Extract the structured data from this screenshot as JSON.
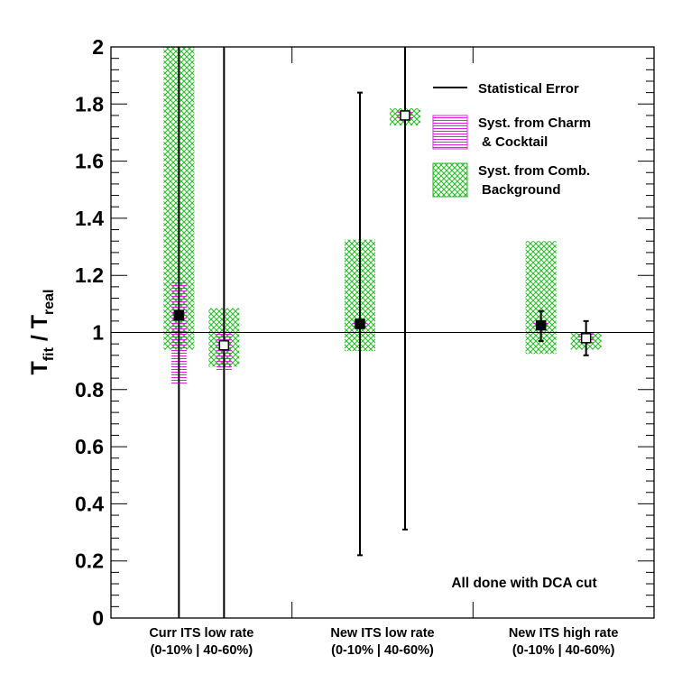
{
  "chart_data": {
    "type": "scatter",
    "ylabel": {
      "main1": "T",
      "sub1": "fit",
      "main2": " / T",
      "sub2": "real"
    },
    "ylim": [
      0,
      2
    ],
    "yticks": [
      0,
      0.2,
      0.4,
      0.6,
      0.8,
      1,
      1.2,
      1.4,
      1.6,
      1.8,
      2
    ],
    "ytick_labels": [
      "0",
      "0.2",
      "0.4",
      "0.6",
      "0.8",
      "1",
      "1.2",
      "1.4",
      "1.6",
      "1.8",
      "2"
    ],
    "reference_line": 1,
    "categories": [
      {
        "line1": "Curr ITS low rate",
        "line2": "(0-10% | 40-60%)"
      },
      {
        "line1": "New ITS low rate",
        "line2": "(0-10% | 40-60%)"
      },
      {
        "line1": "New ITS high rate",
        "line2": "(0-10% | 40-60%)"
      }
    ],
    "points": [
      {
        "category": 0,
        "centrality": "0-10%",
        "y": 1.06,
        "stat_low": 0.0,
        "stat_high": 2.0,
        "syst_charm": [
          0.82,
          1.18
        ],
        "syst_comb": [
          0.94,
          2.0
        ]
      },
      {
        "category": 0,
        "centrality": "40-60%",
        "y": 0.955,
        "stat_low": 0.0,
        "stat_high": 2.0,
        "syst_charm": [
          0.865,
          1.0
        ],
        "syst_comb": [
          0.88,
          1.085
        ]
      },
      {
        "category": 1,
        "centrality": "0-10%",
        "y": 1.03,
        "stat_low": 0.22,
        "stat_high": 1.84,
        "syst_charm": [
          1.02,
          1.04
        ],
        "syst_comb": [
          0.935,
          1.325
        ]
      },
      {
        "category": 1,
        "centrality": "40-60%",
        "y": 1.76,
        "stat_low": 0.31,
        "stat_high": 2.0,
        "syst_charm": [
          1.745,
          1.775
        ],
        "syst_comb": [
          1.725,
          1.785
        ]
      },
      {
        "category": 2,
        "centrality": "0-10%",
        "y": 1.025,
        "stat_low": 0.97,
        "stat_high": 1.075,
        "syst_charm": [
          1.015,
          1.035
        ],
        "syst_comb": [
          0.925,
          1.32
        ]
      },
      {
        "category": 2,
        "centrality": "40-60%",
        "y": 0.98,
        "stat_low": 0.92,
        "stat_high": 1.04,
        "syst_charm": [
          0.965,
          0.995
        ],
        "syst_comb": [
          0.94,
          1.0
        ]
      }
    ],
    "legend": {
      "placement": "top-right",
      "entries": [
        {
          "key": "stat",
          "line1": "Statistical Error",
          "line2": ""
        },
        {
          "key": "charm",
          "line1": "Syst. from Charm",
          "line2": "& Cocktail"
        },
        {
          "key": "comb",
          "line1": "Syst. from Comb.",
          "line2": "Background"
        }
      ]
    },
    "annotation": "All done with DCA cut",
    "colors": {
      "charm": "#e020e0",
      "comb": "#22bb22",
      "axis": "#000000"
    }
  }
}
